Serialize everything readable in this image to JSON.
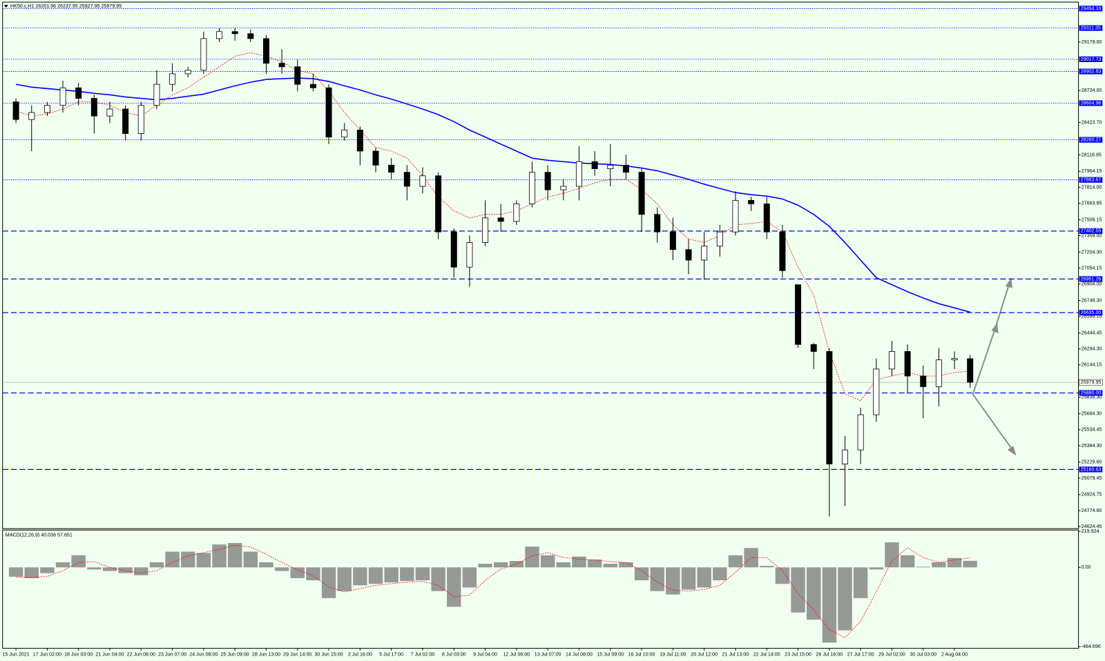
{
  "chart_data": [
    {
      "type": "candlestick",
      "title": "HK50.c,H1",
      "categories": [
        "15 Jun 2021",
        null,
        "17 Jun 02:00",
        null,
        "18 Jun 03:00",
        null,
        "21 Jun 04:00",
        null,
        "22 Jun 06:00",
        null,
        "23 Jun 07:00",
        null,
        "24 Jun 08:00",
        null,
        "25 Jun 09:00",
        null,
        "28 Jun 13:00",
        null,
        "29 Jun 14:00",
        null,
        "30 Jun 15:00",
        null,
        "2 Jul 16:00",
        null,
        "5 Jul 17:00",
        null,
        "7 Jul 02:00",
        null,
        "8 Jul 03:00",
        null,
        "9 Jul 04:00",
        null,
        "12 Jul 06:00",
        null,
        "13 Jul 07:00",
        null,
        "14 Jul 08:00",
        null,
        "15 Jul 09:00",
        null,
        "16 Jul 10:00",
        null,
        "19 Jul 11:00",
        null,
        "20 Jul 12:00",
        null,
        "21 Jul 13:00",
        null,
        "22 Jul 14:00",
        null,
        "23 Jul 15:00",
        null,
        "26 Jul 16:00",
        null,
        "27 Jul 17:00",
        null,
        "29 Jul 02:00",
        null,
        "30 Jul 03:00",
        null,
        "2 Aug 04:00",
        null
      ],
      "open": [
        28617,
        28451,
        28517,
        28584,
        28749,
        28650,
        28484,
        28550,
        28319,
        28584,
        28782,
        28881,
        28914,
        29212,
        29278,
        29258,
        29212,
        28980,
        28947,
        28782,
        28749,
        28286,
        28352,
        28154,
        28022,
        27955,
        27823,
        27922,
        27394,
        27063,
        27294,
        27526,
        27493,
        27658,
        27955,
        27790,
        27823,
        28055,
        27988,
        28022,
        27955,
        27559,
        27394,
        27228,
        27129,
        27261,
        27394,
        27691,
        27658,
        27394,
        26898,
        26336,
        26270,
        25212,
        25344,
        25675,
        26105,
        26270,
        26039,
        25939,
        26191,
        26201.96
      ],
      "high": [
        28650,
        28584,
        28617,
        28815,
        28795,
        28683,
        28617,
        28584,
        28617,
        28914,
        28980,
        28947,
        29278,
        29311,
        29311,
        29298,
        29245,
        29113,
        29013,
        28881,
        28782,
        28418,
        28385,
        28187,
        28088,
        28022,
        28002,
        27955,
        27427,
        27361,
        27691,
        27658,
        27691,
        28055,
        28022,
        27889,
        28200,
        28154,
        28220,
        28121,
        27988,
        27625,
        27526,
        27327,
        27394,
        27460,
        27777,
        27724,
        27724,
        27460,
        26898,
        26349,
        26303,
        25477,
        25741,
        26204,
        26369,
        26336,
        26138,
        26303,
        26270,
        26237.95
      ],
      "low": [
        28418,
        28154,
        28484,
        28517,
        28584,
        28319,
        28418,
        28253,
        28253,
        28550,
        28716,
        28848,
        28881,
        29179,
        29192,
        29179,
        28881,
        28881,
        28716,
        28716,
        28220,
        28253,
        28022,
        27955,
        27889,
        27691,
        27757,
        27327,
        26964,
        26878,
        27261,
        27394,
        27460,
        27625,
        27691,
        27691,
        27691,
        27922,
        27823,
        27889,
        27394,
        27294,
        27129,
        26997,
        26944,
        27162,
        27361,
        27592,
        27327,
        26964,
        26303,
        26105,
        24717,
        24816,
        25212,
        25609,
        26039,
        25873,
        25642,
        25754,
        26105,
        25927.95
      ],
      "close": [
        28451,
        28517,
        28584,
        28749,
        28650,
        28484,
        28550,
        28319,
        28584,
        28782,
        28881,
        28914,
        29212,
        29278,
        29258,
        29212,
        28980,
        28947,
        28782,
        28749,
        28286,
        28352,
        28154,
        28022,
        27955,
        27823,
        27922,
        27394,
        27063,
        27294,
        27526,
        27493,
        27658,
        27955,
        27790,
        27823,
        28055,
        27988,
        28022,
        27955,
        27559,
        27394,
        27228,
        27129,
        27261,
        27394,
        27691,
        27658,
        27394,
        27030,
        26336,
        26270,
        25212,
        25344,
        25675,
        26105,
        26270,
        26039,
        25939,
        26191,
        26204,
        25979.95
      ],
      "moving_averages": [
        {
          "color": "#0000ff",
          "values": [
            28782,
            28755,
            28742,
            28729,
            28716,
            28697,
            28683,
            28663,
            28650,
            28636,
            28650,
            28670,
            28690,
            28729,
            28768,
            28802,
            28828,
            28835,
            28841,
            28835,
            28809,
            28768,
            28729,
            28683,
            28643,
            28597,
            28550,
            28497,
            28431,
            28352,
            28286,
            28220,
            28154,
            28088,
            28068,
            28055,
            28042,
            28035,
            28028,
            28015,
            27995,
            27969,
            27929,
            27889,
            27843,
            27803,
            27764,
            27744,
            27731,
            27704,
            27645,
            27559,
            27446,
            27294,
            27129,
            26964,
            26898,
            26832,
            26773,
            26719,
            26680,
            26640
          ]
        },
        {
          "color": "#ff0000",
          "values": [
            28531,
            28484,
            28504,
            28550,
            28617,
            28617,
            28584,
            28517,
            28484,
            28584,
            28683,
            28749,
            28848,
            28947,
            29046,
            29079,
            29046,
            28993,
            28914,
            28881,
            28716,
            28517,
            28352,
            28187,
            28154,
            28088,
            27922,
            27724,
            27592,
            27526,
            27559,
            27559,
            27592,
            27658,
            27724,
            27757,
            27803,
            27856,
            27889,
            27889,
            27790,
            27658,
            27460,
            27327,
            27294,
            27361,
            27460,
            27473,
            27493,
            27394,
            27063,
            26799,
            26270,
            25873,
            25807,
            26005,
            26039,
            26072,
            26039,
            26039,
            26072,
            26085
          ]
        }
      ],
      "ylim": [
        24604,
        29555
      ],
      "yticks": [
        {
          "value": 29179,
          "label": "29179.00"
        },
        {
          "value": 28724,
          "label": "28724.00"
        },
        {
          "value": 28423.7,
          "label": "28423.70"
        },
        28118.85,
        27964.15,
        {
          "value": 27814,
          "label": "27814.00"
        },
        27663.85,
        27509.15,
        {
          "value": 27359,
          "label": "27359.00"
        },
        {
          "value": 27204.3,
          "label": "27204.30"
        },
        27054.15,
        {
          "value": 26904,
          "label": "26904.00"
        },
        {
          "value": 26749.3,
          "label": "26749.30"
        },
        26599.15,
        26444.45,
        {
          "value": 26294.3,
          "label": "26294.30"
        },
        26144.15,
        {
          "value": 25839.3,
          "label": "25839.30"
        },
        {
          "value": 25684.3,
          "label": "25684.30"
        },
        25534.45,
        {
          "value": 25384.3,
          "label": "25384.30"
        },
        {
          "value": 25229.6,
          "label": "25229.60"
        },
        25079.45,
        24924.75,
        {
          "value": 24774.6,
          "label": "24774.60"
        },
        24624.45
      ],
      "dotted_levels": [
        29494.33,
        29311.35,
        29017.73,
        28902.83,
        28604.96,
        28260.27,
        27883.67
      ],
      "dashed_levels": [
        27402.55,
        26951.26,
        {
          "value": 26635,
          "label": "26635.00"
        },
        {
          "value": 25880,
          "label": "25880.00"
        },
        25160.63
      ],
      "level_color": "#0000ff"
    },
    {
      "type": "macd",
      "title": "MACD(12,26,9) 40.036 57.651",
      "histogram": [
        -57,
        -66,
        -35,
        31,
        74,
        -13,
        -22,
        -35,
        -48,
        31,
        96,
        96,
        88,
        140,
        149,
        96,
        31,
        -22,
        -66,
        -79,
        -188,
        -145,
        -110,
        -101,
        -92,
        -83,
        -79,
        -145,
        -241,
        -123,
        22,
        31,
        39,
        127,
        74,
        31,
        66,
        48,
        22,
        31,
        -79,
        -145,
        -166,
        -136,
        -123,
        -79,
        74,
        118,
        9,
        -101,
        -276,
        -320,
        -460,
        -385,
        -188,
        -13,
        153,
        74,
        4,
        31,
        57,
        40.036
      ],
      "signal": [
        -60,
        -62,
        -55,
        -20,
        30,
        35,
        0,
        -20,
        -35,
        -20,
        30,
        70,
        90,
        110,
        135,
        125,
        80,
        30,
        -15,
        -50,
        -120,
        -150,
        -130,
        -110,
        -100,
        -90,
        -85,
        -110,
        -180,
        -170,
        -80,
        -10,
        20,
        70,
        90,
        60,
        50,
        45,
        35,
        30,
        -20,
        -90,
        -140,
        -145,
        -135,
        -110,
        -30,
        60,
        60,
        -20,
        -160,
        -260,
        -380,
        -430,
        -330,
        -150,
        40,
        120,
        60,
        30,
        45,
        57.651
      ],
      "histogram_color": "#808080",
      "signal_color": "#ff0000",
      "ylim": [
        -495,
        228
      ],
      "yticks": [
        {
          "value": 219.924,
          "label": "219.924"
        },
        {
          "value": 0,
          "label": "0.00"
        },
        {
          "value": -484.696,
          "label": "-484.696"
        }
      ]
    }
  ]
}
